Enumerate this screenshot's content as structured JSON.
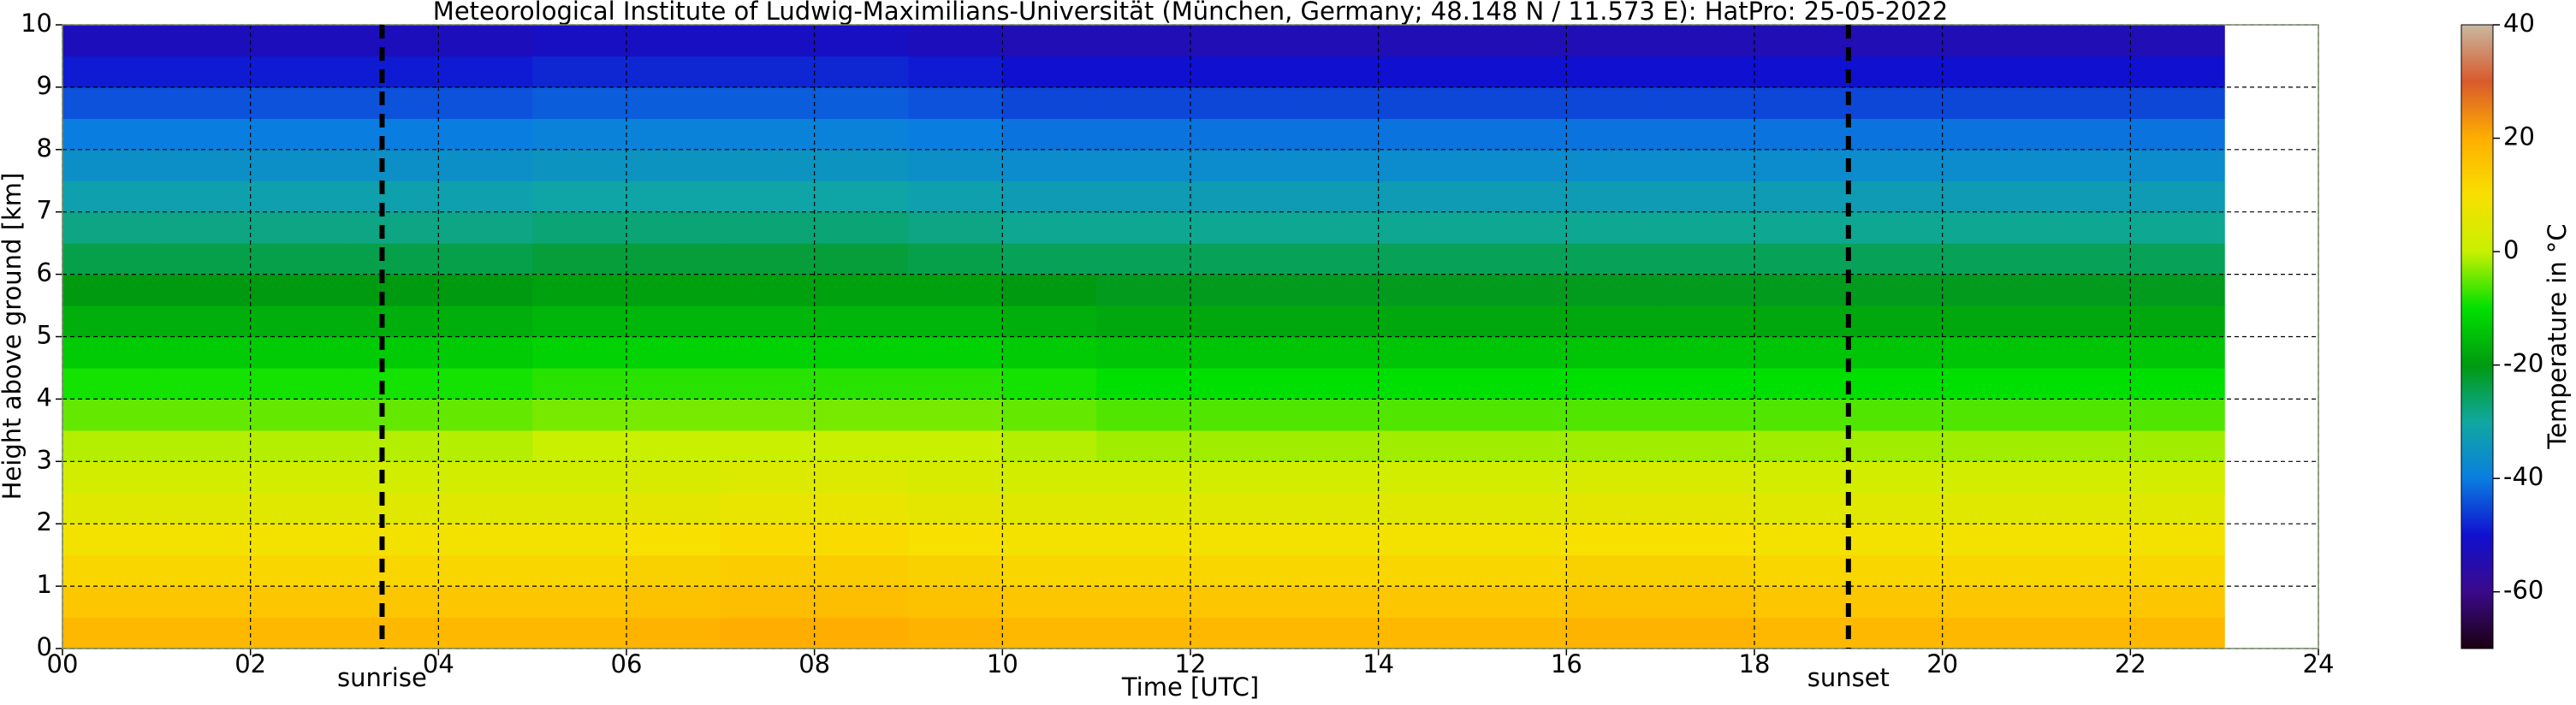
{
  "chart_data": {
    "type": "heatmap",
    "title": "Meteorological Institute of Ludwig-Maximilians-Universität (München, Germany; 48.148 N / 11.573 E):    HatPro: 25-05-2022",
    "x_label": "Time [UTC]",
    "y_label": "Height above ground [km]",
    "xlim": [
      0,
      24
    ],
    "ylim": [
      0,
      10
    ],
    "xticks": [
      {
        "value": 0,
        "label": "00"
      },
      {
        "value": 2,
        "label": "02"
      },
      {
        "value": 4,
        "label": "04"
      },
      {
        "value": 6,
        "label": "06"
      },
      {
        "value": 8,
        "label": "08"
      },
      10,
      12,
      14,
      16,
      18,
      20,
      22,
      24
    ],
    "yticks": [
      0,
      1,
      2,
      3,
      4,
      5,
      6,
      7,
      8,
      9,
      10
    ],
    "grid": true,
    "x": [
      0,
      1,
      2,
      3,
      4,
      5,
      6,
      7,
      8,
      9,
      10,
      11,
      12,
      13,
      14,
      15,
      16,
      17,
      18,
      19,
      20,
      21,
      22
    ],
    "y": [
      0,
      0.5,
      1,
      1.5,
      2,
      2.5,
      3,
      3.5,
      4,
      4.5,
      5,
      5.5,
      6,
      6.5,
      7,
      7.5,
      8,
      8.5,
      9,
      9.5
    ],
    "cell_width": 1,
    "cell_height": 0.5,
    "z": [
      [
        18,
        18,
        18,
        18,
        18,
        18,
        19,
        20,
        20,
        19,
        18,
        18,
        18,
        18,
        18,
        18,
        19,
        19,
        18,
        18,
        18,
        18,
        18
      ],
      [
        15,
        15,
        15,
        15,
        15,
        15,
        16,
        17,
        17,
        16,
        15,
        15,
        15,
        15,
        15,
        15,
        16,
        16,
        15,
        15,
        15,
        15,
        15
      ],
      [
        12,
        12,
        12,
        12,
        12,
        12,
        13,
        14,
        14,
        13,
        12,
        12,
        12,
        12,
        12,
        12,
        13,
        13,
        12,
        12,
        12,
        12,
        12
      ],
      [
        9,
        9,
        9,
        9,
        9,
        9,
        10,
        11,
        11,
        10,
        9,
        9,
        9,
        9,
        9,
        9,
        10,
        10,
        9,
        9,
        9,
        9,
        9
      ],
      [
        5,
        5,
        5,
        5,
        5,
        5,
        6,
        7,
        7,
        6,
        5,
        5,
        5,
        5,
        5,
        5,
        6,
        6,
        5,
        5,
        5,
        5,
        5
      ],
      [
        2,
        2,
        2,
        2,
        2,
        2,
        3,
        4,
        4,
        3,
        2,
        2,
        2,
        2,
        2,
        2,
        3,
        3,
        2,
        2,
        2,
        2,
        2
      ],
      [
        -1,
        -1,
        -1,
        -1,
        -1,
        0,
        0,
        0,
        0,
        0,
        -1,
        -2,
        -2,
        -2,
        -2,
        -2,
        -2,
        -2,
        -2,
        -2,
        -2,
        -2,
        -2
      ],
      [
        -5,
        -5,
        -5,
        -5,
        -5,
        -4,
        -4,
        -4,
        -4,
        -4,
        -5,
        -6,
        -6,
        -6,
        -6,
        -6,
        -6,
        -6,
        -6,
        -6,
        -6,
        -6,
        -6
      ],
      [
        -9,
        -9,
        -9,
        -9,
        -9,
        -8,
        -8,
        -8,
        -8,
        -8,
        -9,
        -10,
        -10,
        -10,
        -10,
        -10,
        -10,
        -10,
        -10,
        -10,
        -10,
        -10,
        -10
      ],
      [
        -13,
        -13,
        -13,
        -13,
        -13,
        -12,
        -12,
        -12,
        -12,
        -12,
        -13,
        -14,
        -14,
        -14,
        -14,
        -14,
        -14,
        -14,
        -14,
        -14,
        -14,
        -14,
        -14
      ],
      [
        -17,
        -17,
        -17,
        -17,
        -17,
        -16,
        -16,
        -16,
        -16,
        -16,
        -17,
        -18,
        -18,
        -18,
        -18,
        -18,
        -18,
        -18,
        -18,
        -18,
        -18,
        -18,
        -18
      ],
      [
        -20,
        -20,
        -20,
        -20,
        -20,
        -19,
        -19,
        -19,
        -19,
        -19,
        -20,
        -21,
        -21,
        -21,
        -21,
        -21,
        -21,
        -21,
        -21,
        -21,
        -21,
        -21,
        -21
      ],
      [
        -24,
        -24,
        -24,
        -24,
        -24,
        -23,
        -23,
        -23,
        -23,
        -24,
        -25,
        -25,
        -25,
        -25,
        -25,
        -25,
        -25,
        -25,
        -25,
        -25,
        -25,
        -25,
        -25
      ],
      [
        -28,
        -28,
        -28,
        -28,
        -28,
        -27,
        -27,
        -27,
        -27,
        -28,
        -29,
        -29,
        -29,
        -29,
        -29,
        -29,
        -29,
        -29,
        -29,
        -29,
        -29,
        -29,
        -29
      ],
      [
        -32,
        -32,
        -32,
        -32,
        -32,
        -31,
        -31,
        -31,
        -31,
        -32,
        -33,
        -33,
        -33,
        -33,
        -33,
        -33,
        -33,
        -33,
        -33,
        -33,
        -33,
        -33,
        -33
      ],
      [
        -36,
        -36,
        -36,
        -36,
        -36,
        -35,
        -35,
        -35,
        -35,
        -36,
        -37,
        -37,
        -37,
        -37,
        -37,
        -37,
        -37,
        -37,
        -37,
        -37,
        -37,
        -37,
        -37
      ],
      [
        -40,
        -40,
        -40,
        -40,
        -40,
        -39,
        -39,
        -39,
        -39,
        -40,
        -41,
        -41,
        -41,
        -41,
        -41,
        -41,
        -41,
        -41,
        -41,
        -41,
        -41,
        -41,
        -41
      ],
      [
        -44,
        -44,
        -44,
        -44,
        -44,
        -43,
        -43,
        -43,
        -43,
        -44,
        -45,
        -45,
        -45,
        -45,
        -45,
        -45,
        -45,
        -45,
        -45,
        -45,
        -45,
        -45,
        -45
      ],
      [
        -49,
        -49,
        -49,
        -49,
        -49,
        -48,
        -48,
        -48,
        -48,
        -49,
        -50,
        -50,
        -50,
        -50,
        -50,
        -50,
        -50,
        -50,
        -50,
        -50,
        -50,
        -50,
        -50
      ],
      [
        -53,
        -53,
        -53,
        -53,
        -53,
        -52,
        -52,
        -52,
        -52,
        -53,
        -54,
        -54,
        -54,
        -54,
        -54,
        -54,
        -54,
        -54,
        -54,
        -54,
        -54,
        -54,
        -54
      ]
    ],
    "vlines": [
      {
        "x": 3.4,
        "label": "sunrise"
      },
      {
        "x": 19.0,
        "label": "sunset"
      }
    ],
    "colorbar": {
      "label": "Temperature in °C",
      "lim": [
        -70,
        40
      ],
      "ticks": [
        -60,
        -40,
        -20,
        0,
        20,
        40
      ],
      "colors": [
        "#1a0010",
        "#3a0a8a",
        "#1010d0",
        "#0a7ee0",
        "#10a8a0",
        "#009a10",
        "#00e000",
        "#c8f000",
        "#f8e000",
        "#ffae00",
        "#d85a2c",
        "#c8b8a0"
      ]
    }
  }
}
